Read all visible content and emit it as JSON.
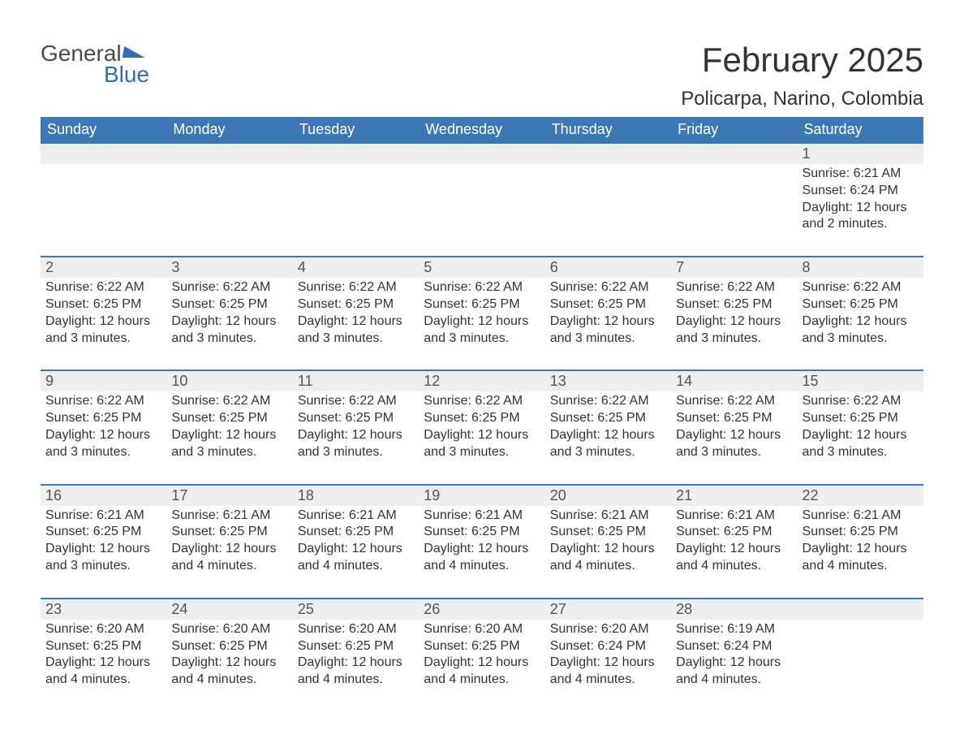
{
  "logo": {
    "line1": "General",
    "line2": "Blue"
  },
  "title": "February 2025",
  "location": "Policarpa, Narino, Colombia",
  "colors": {
    "header_bg": "#3b78b5",
    "header_text": "#ffffff",
    "daynum_bg": "#eeeeee",
    "rule": "#3b78b5",
    "logo_blue": "#2f6fb0",
    "body_text": "#333333"
  },
  "columns": [
    "Sunday",
    "Monday",
    "Tuesday",
    "Wednesday",
    "Thursday",
    "Friday",
    "Saturday"
  ],
  "weeks": [
    [
      null,
      null,
      null,
      null,
      null,
      null,
      {
        "n": "1",
        "sunrise": "Sunrise: 6:21 AM",
        "sunset": "Sunset: 6:24 PM",
        "daylight": "Daylight: 12 hours and 2 minutes."
      }
    ],
    [
      {
        "n": "2",
        "sunrise": "Sunrise: 6:22 AM",
        "sunset": "Sunset: 6:25 PM",
        "daylight": "Daylight: 12 hours and 3 minutes."
      },
      {
        "n": "3",
        "sunrise": "Sunrise: 6:22 AM",
        "sunset": "Sunset: 6:25 PM",
        "daylight": "Daylight: 12 hours and 3 minutes."
      },
      {
        "n": "4",
        "sunrise": "Sunrise: 6:22 AM",
        "sunset": "Sunset: 6:25 PM",
        "daylight": "Daylight: 12 hours and 3 minutes."
      },
      {
        "n": "5",
        "sunrise": "Sunrise: 6:22 AM",
        "sunset": "Sunset: 6:25 PM",
        "daylight": "Daylight: 12 hours and 3 minutes."
      },
      {
        "n": "6",
        "sunrise": "Sunrise: 6:22 AM",
        "sunset": "Sunset: 6:25 PM",
        "daylight": "Daylight: 12 hours and 3 minutes."
      },
      {
        "n": "7",
        "sunrise": "Sunrise: 6:22 AM",
        "sunset": "Sunset: 6:25 PM",
        "daylight": "Daylight: 12 hours and 3 minutes."
      },
      {
        "n": "8",
        "sunrise": "Sunrise: 6:22 AM",
        "sunset": "Sunset: 6:25 PM",
        "daylight": "Daylight: 12 hours and 3 minutes."
      }
    ],
    [
      {
        "n": "9",
        "sunrise": "Sunrise: 6:22 AM",
        "sunset": "Sunset: 6:25 PM",
        "daylight": "Daylight: 12 hours and 3 minutes."
      },
      {
        "n": "10",
        "sunrise": "Sunrise: 6:22 AM",
        "sunset": "Sunset: 6:25 PM",
        "daylight": "Daylight: 12 hours and 3 minutes."
      },
      {
        "n": "11",
        "sunrise": "Sunrise: 6:22 AM",
        "sunset": "Sunset: 6:25 PM",
        "daylight": "Daylight: 12 hours and 3 minutes."
      },
      {
        "n": "12",
        "sunrise": "Sunrise: 6:22 AM",
        "sunset": "Sunset: 6:25 PM",
        "daylight": "Daylight: 12 hours and 3 minutes."
      },
      {
        "n": "13",
        "sunrise": "Sunrise: 6:22 AM",
        "sunset": "Sunset: 6:25 PM",
        "daylight": "Daylight: 12 hours and 3 minutes."
      },
      {
        "n": "14",
        "sunrise": "Sunrise: 6:22 AM",
        "sunset": "Sunset: 6:25 PM",
        "daylight": "Daylight: 12 hours and 3 minutes."
      },
      {
        "n": "15",
        "sunrise": "Sunrise: 6:22 AM",
        "sunset": "Sunset: 6:25 PM",
        "daylight": "Daylight: 12 hours and 3 minutes."
      }
    ],
    [
      {
        "n": "16",
        "sunrise": "Sunrise: 6:21 AM",
        "sunset": "Sunset: 6:25 PM",
        "daylight": "Daylight: 12 hours and 3 minutes."
      },
      {
        "n": "17",
        "sunrise": "Sunrise: 6:21 AM",
        "sunset": "Sunset: 6:25 PM",
        "daylight": "Daylight: 12 hours and 4 minutes."
      },
      {
        "n": "18",
        "sunrise": "Sunrise: 6:21 AM",
        "sunset": "Sunset: 6:25 PM",
        "daylight": "Daylight: 12 hours and 4 minutes."
      },
      {
        "n": "19",
        "sunrise": "Sunrise: 6:21 AM",
        "sunset": "Sunset: 6:25 PM",
        "daylight": "Daylight: 12 hours and 4 minutes."
      },
      {
        "n": "20",
        "sunrise": "Sunrise: 6:21 AM",
        "sunset": "Sunset: 6:25 PM",
        "daylight": "Daylight: 12 hours and 4 minutes."
      },
      {
        "n": "21",
        "sunrise": "Sunrise: 6:21 AM",
        "sunset": "Sunset: 6:25 PM",
        "daylight": "Daylight: 12 hours and 4 minutes."
      },
      {
        "n": "22",
        "sunrise": "Sunrise: 6:21 AM",
        "sunset": "Sunset: 6:25 PM",
        "daylight": "Daylight: 12 hours and 4 minutes."
      }
    ],
    [
      {
        "n": "23",
        "sunrise": "Sunrise: 6:20 AM",
        "sunset": "Sunset: 6:25 PM",
        "daylight": "Daylight: 12 hours and 4 minutes."
      },
      {
        "n": "24",
        "sunrise": "Sunrise: 6:20 AM",
        "sunset": "Sunset: 6:25 PM",
        "daylight": "Daylight: 12 hours and 4 minutes."
      },
      {
        "n": "25",
        "sunrise": "Sunrise: 6:20 AM",
        "sunset": "Sunset: 6:25 PM",
        "daylight": "Daylight: 12 hours and 4 minutes."
      },
      {
        "n": "26",
        "sunrise": "Sunrise: 6:20 AM",
        "sunset": "Sunset: 6:25 PM",
        "daylight": "Daylight: 12 hours and 4 minutes."
      },
      {
        "n": "27",
        "sunrise": "Sunrise: 6:20 AM",
        "sunset": "Sunset: 6:24 PM",
        "daylight": "Daylight: 12 hours and 4 minutes."
      },
      {
        "n": "28",
        "sunrise": "Sunrise: 6:19 AM",
        "sunset": "Sunset: 6:24 PM",
        "daylight": "Daylight: 12 hours and 4 minutes."
      },
      null
    ]
  ]
}
